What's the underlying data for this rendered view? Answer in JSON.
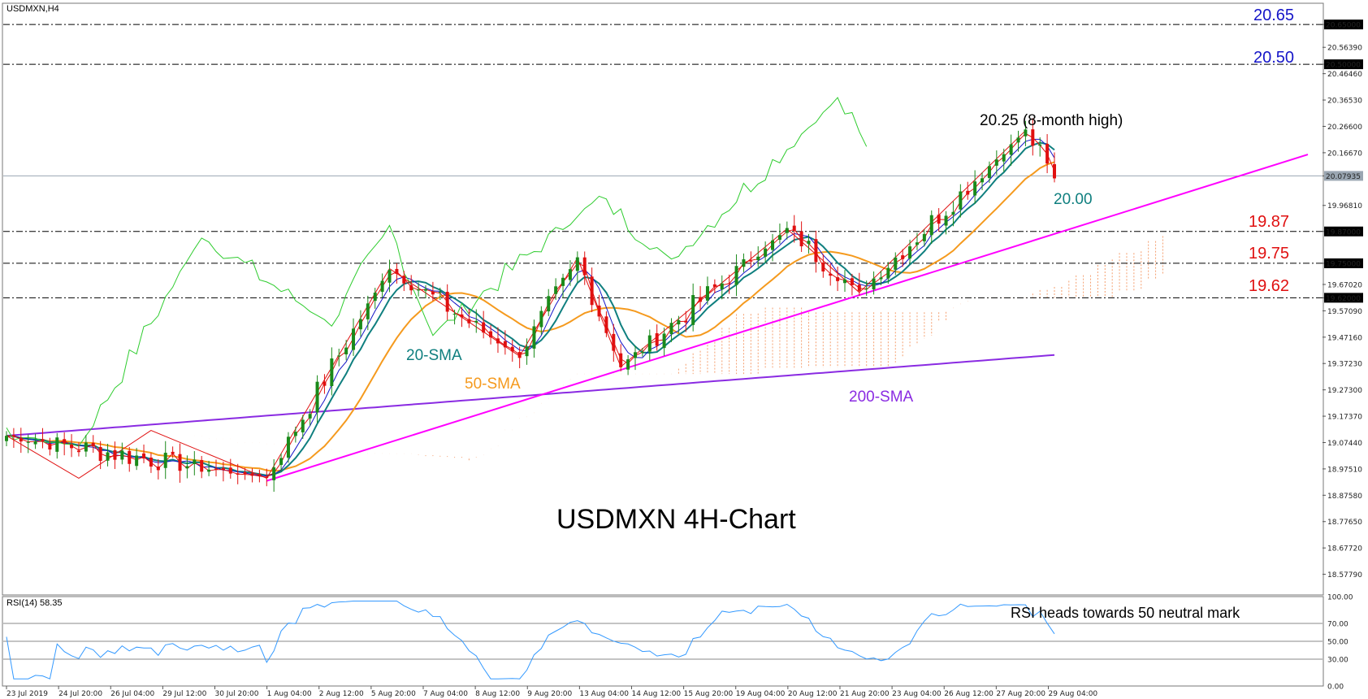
{
  "header": {
    "symbol_label": "USDMXN,H4",
    "rsi_label": "RSI(14) 58.35"
  },
  "watermark": "USDMXN 4H-Chart",
  "colors": {
    "bull": "#1a8a1a",
    "bear": "#e01010",
    "sma20": "#0f7f7f",
    "sma50": "#f59a1e",
    "sma200": "#8a2be2",
    "trendline": "#ff00ff",
    "tenkan": "#e01010",
    "kijun": "#1515c8",
    "chikou": "#2ecc2e",
    "cloud": "#f5a070",
    "level_red": "#e01010",
    "level_blue": "#1515c8",
    "rsi": "#3399ff"
  },
  "chart_data": [
    {
      "type": "candlestick",
      "title": "USDMXN,H4",
      "ylim": [
        18.5,
        20.73
      ],
      "y_ticks": [
        "20.65000",
        "20.56390",
        "20.50000",
        "20.46460",
        "20.36530",
        "20.26600",
        "20.16670",
        "20.07935",
        "19.96810",
        "19.87000",
        "19.75000",
        "19.67020",
        "19.62000",
        "19.57090",
        "19.47160",
        "19.37230",
        "19.27300",
        "19.17370",
        "19.07440",
        "18.97510",
        "18.87580",
        "18.77650",
        "18.67720",
        "18.57790"
      ],
      "x_ticks": [
        "23 Jul 2019",
        "24 Jul 20:00",
        "26 Jul 04:00",
        "29 Jul 12:00",
        "30 Jul 20:00",
        "1 Aug 04:00",
        "2 Aug 12:00",
        "5 Aug 20:00",
        "7 Aug 04:00",
        "8 Aug 12:00",
        "9 Aug 20:00",
        "13 Aug 04:00",
        "14 Aug 12:00",
        "15 Aug 20:00",
        "19 Aug 04:00",
        "20 Aug 12:00",
        "21 Aug 20:00",
        "23 Aug 04:00",
        "26 Aug 12:00",
        "27 Aug 20:00",
        "29 Aug 04:00"
      ],
      "current_price": 20.07935,
      "key_points": [
        {
          "label": "start",
          "value": 19.1
        },
        {
          "label": "low 31 Jul",
          "value": 18.94
        },
        {
          "label": "high 6 Aug",
          "value": 19.73
        },
        {
          "label": "low 8 Aug",
          "value": 19.4
        },
        {
          "label": "high 9 Aug",
          "value": 19.77
        },
        {
          "label": "low 13 Aug",
          "value": 19.36
        },
        {
          "label": "high 19 Aug",
          "value": 19.88
        },
        {
          "label": "low 21 Aug",
          "value": 19.64
        },
        {
          "label": "high 29 Aug",
          "value": 20.25
        },
        {
          "label": "last",
          "value": 20.07
        }
      ],
      "horizontal_levels": [
        {
          "value": 20.65,
          "label": "20.65",
          "color": "blue"
        },
        {
          "value": 20.5,
          "label": "20.50",
          "color": "blue"
        },
        {
          "value": 19.87,
          "label": "19.87",
          "color": "red"
        },
        {
          "value": 19.75,
          "label": "19.75",
          "color": "red"
        },
        {
          "value": 19.62,
          "label": "19.62",
          "color": "red"
        }
      ],
      "indicators": [
        {
          "name": "20-SMA",
          "last_value": 20.0
        },
        {
          "name": "50-SMA"
        },
        {
          "name": "200-SMA"
        }
      ],
      "annotations": [
        "20.25 (8-month high)",
        "20.00"
      ]
    },
    {
      "type": "line",
      "title": "RSI(14) 58.35",
      "ylim": [
        0,
        100
      ],
      "y_ticks": [
        "100.00",
        "70.00",
        "50.00",
        "30.00",
        "0.00"
      ],
      "levels": [
        70,
        50,
        30
      ],
      "last_value": 58.35,
      "annotation": "RSI heads towards 50 neutral mark"
    }
  ]
}
